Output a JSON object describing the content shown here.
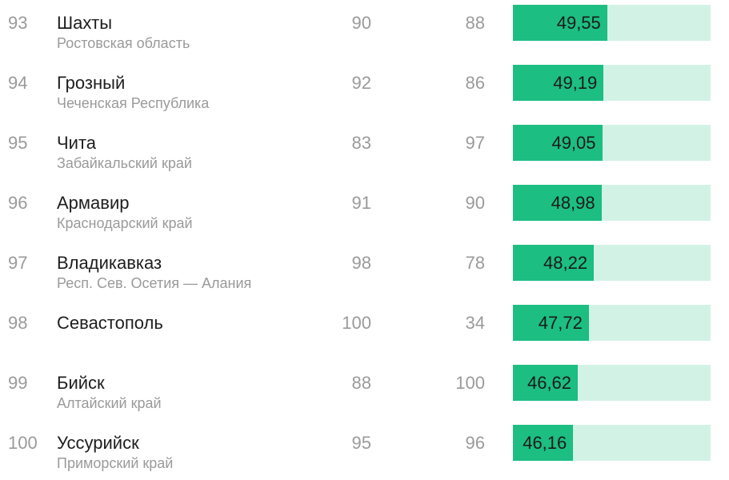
{
  "rows": [
    {
      "rank": "93",
      "city": "Шахты",
      "region": "Ростовская область",
      "col1": "90",
      "col2": "88",
      "score": "49,55",
      "score_value": 49.55
    },
    {
      "rank": "94",
      "city": "Грозный",
      "region": "Чеченская Республика",
      "col1": "92",
      "col2": "86",
      "score": "49,19",
      "score_value": 49.19
    },
    {
      "rank": "95",
      "city": "Чита",
      "region": "Забайкальский край",
      "col1": "83",
      "col2": "97",
      "score": "49,05",
      "score_value": 49.05
    },
    {
      "rank": "96",
      "city": "Армавир",
      "region": "Краснодарский край",
      "col1": "91",
      "col2": "90",
      "score": "48,98",
      "score_value": 48.98
    },
    {
      "rank": "97",
      "city": "Владикавказ",
      "region": "Респ. Сев. Осетия — Алания",
      "col1": "98",
      "col2": "78",
      "score": "48,22",
      "score_value": 48.22
    },
    {
      "rank": "98",
      "city": "Севастополь",
      "region": "",
      "col1": "100",
      "col2": "34",
      "score": "47,72",
      "score_value": 47.72
    },
    {
      "rank": "99",
      "city": "Бийск",
      "region": "Алтайский край",
      "col1": "88",
      "col2": "100",
      "score": "46,62",
      "score_value": 46.62
    },
    {
      "rank": "100",
      "city": "Уссурийск",
      "region": "Приморский край",
      "col1": "95",
      "col2": "96",
      "score": "46,16",
      "score_value": 46.16
    }
  ],
  "colors": {
    "bar_fill": "#1cbe82",
    "bar_track": "#d3f2e6",
    "muted_text": "#9a9a9a",
    "primary_text": "#1e1e1e"
  }
}
